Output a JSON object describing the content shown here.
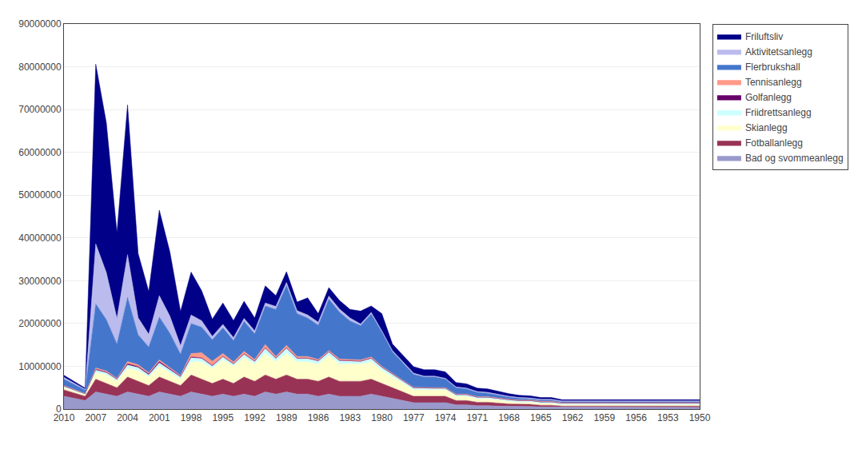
{
  "chart_data": {
    "type": "area",
    "stacked": true,
    "x": [
      2010,
      2009,
      2008,
      2007,
      2006,
      2005,
      2004,
      2003,
      2002,
      2001,
      2000,
      1999,
      1998,
      1997,
      1996,
      1995,
      1994,
      1993,
      1992,
      1991,
      1990,
      1989,
      1988,
      1987,
      1986,
      1985,
      1984,
      1983,
      1982,
      1981,
      1980,
      1979,
      1978,
      1977,
      1976,
      1975,
      1974,
      1973,
      1972,
      1971,
      1970,
      1969,
      1968,
      1967,
      1966,
      1965,
      1964,
      1963,
      1962,
      1961,
      1960,
      1959,
      1958,
      1957,
      1956,
      1955,
      1954,
      1953,
      1952,
      1951,
      1950
    ],
    "series": [
      {
        "name": "Bad og svommeanlegg",
        "color": "#9999CC",
        "values": [
          3000000,
          2500000,
          2000000,
          4000000,
          3500000,
          3000000,
          4000000,
          3500000,
          3000000,
          4000000,
          3500000,
          3000000,
          4000000,
          3500000,
          3000000,
          3500000,
          3000000,
          3500000,
          3000000,
          4000000,
          3500000,
          4000000,
          3500000,
          3500000,
          3000000,
          3500000,
          3000000,
          3000000,
          3000000,
          3500000,
          3000000,
          2500000,
          2000000,
          1500000,
          1500000,
          1500000,
          1500000,
          1000000,
          1000000,
          800000,
          800000,
          700000,
          600000,
          600000,
          600000,
          500000,
          500000,
          400000,
          400000,
          400000,
          400000,
          400000,
          400000,
          400000,
          400000,
          400000,
          400000,
          400000,
          400000,
          400000,
          400000
        ]
      },
      {
        "name": "Fotballanlegg",
        "color": "#993355",
        "values": [
          1500000,
          1200000,
          1000000,
          3000000,
          2500000,
          2000000,
          3500000,
          3000000,
          2500000,
          3500000,
          3000000,
          2500000,
          4000000,
          3500000,
          3000000,
          3500000,
          3000000,
          4000000,
          3500000,
          4000000,
          3500000,
          4000000,
          3500000,
          3500000,
          3500000,
          4000000,
          3500000,
          3500000,
          3500000,
          3500000,
          3000000,
          2500000,
          2000000,
          1500000,
          1500000,
          1500000,
          1500000,
          1000000,
          1000000,
          800000,
          800000,
          700000,
          600000,
          500000,
          500000,
          400000,
          400000,
          300000,
          300000,
          300000,
          300000,
          300000,
          300000,
          300000,
          300000,
          300000,
          300000,
          300000,
          300000,
          300000,
          300000
        ]
      },
      {
        "name": "Skianlegg",
        "color": "#FFFFCC",
        "values": [
          500000,
          400000,
          300000,
          1500000,
          2000000,
          1500000,
          2000000,
          2500000,
          2000000,
          2500000,
          2000000,
          1500000,
          3000000,
          4000000,
          3500000,
          4500000,
          4000000,
          4500000,
          4000000,
          5000000,
          4000000,
          5000000,
          4000000,
          4000000,
          4000000,
          5000000,
          4000000,
          4000000,
          4000000,
          4000000,
          3000000,
          2500000,
          2000000,
          1500000,
          1500000,
          1500000,
          1500000,
          1000000,
          1000000,
          800000,
          800000,
          700000,
          600000,
          500000,
          500000,
          400000,
          400000,
          300000,
          300000,
          300000,
          300000,
          300000,
          300000,
          300000,
          300000,
          300000,
          300000,
          300000,
          300000,
          300000,
          300000
        ]
      },
      {
        "name": "Friidrettsanlegg",
        "color": "#CCFFFF",
        "values": [
          300000,
          250000,
          200000,
          600000,
          500000,
          400000,
          800000,
          700000,
          500000,
          800000,
          700000,
          500000,
          1000000,
          800000,
          600000,
          700000,
          500000,
          800000,
          600000,
          1200000,
          800000,
          1200000,
          800000,
          800000,
          700000,
          800000,
          800000,
          700000,
          600000,
          800000,
          700000,
          600000,
          500000,
          400000,
          300000,
          300000,
          300000,
          300000,
          300000,
          300000,
          300000,
          300000,
          300000,
          300000,
          300000,
          300000,
          300000,
          300000,
          300000,
          300000,
          300000,
          300000,
          300000,
          300000,
          300000,
          300000,
          300000,
          300000,
          300000,
          300000,
          300000
        ]
      },
      {
        "name": "Golfanlegg",
        "color": "#660066",
        "values": [
          100000,
          80000,
          60000,
          200000,
          150000,
          100000,
          300000,
          250000,
          200000,
          300000,
          200000,
          150000,
          200000,
          150000,
          100000,
          100000,
          100000,
          100000,
          100000,
          100000,
          100000,
          100000,
          100000,
          100000,
          100000,
          100000,
          100000,
          100000,
          100000,
          100000,
          100000,
          100000,
          100000,
          100000,
          100000,
          100000,
          100000,
          100000,
          100000,
          100000,
          100000,
          100000,
          100000,
          100000,
          100000,
          100000,
          100000,
          100000,
          100000,
          100000,
          100000,
          100000,
          100000,
          100000,
          100000,
          100000,
          100000,
          100000,
          100000,
          100000,
          100000
        ]
      },
      {
        "name": "Tennisanlegg",
        "color": "#FF9988",
        "values": [
          100000,
          80000,
          60000,
          300000,
          250000,
          200000,
          500000,
          400000,
          300000,
          400000,
          300000,
          200000,
          800000,
          1200000,
          1000000,
          700000,
          400000,
          600000,
          400000,
          800000,
          400000,
          600000,
          400000,
          400000,
          300000,
          300000,
          300000,
          300000,
          300000,
          300000,
          200000,
          200000,
          100000,
          100000,
          100000,
          100000,
          100000,
          100000,
          100000,
          100000,
          100000,
          100000,
          100000,
          100000,
          100000,
          100000,
          100000,
          100000,
          100000,
          100000,
          100000,
          100000,
          100000,
          100000,
          100000,
          100000,
          100000,
          100000,
          100000,
          100000,
          100000
        ]
      },
      {
        "name": "Flerbrukshall",
        "color": "#4477CC",
        "values": [
          1500000,
          1200000,
          800000,
          15000000,
          12000000,
          8000000,
          15000000,
          7000000,
          6000000,
          10000000,
          8000000,
          5000000,
          7000000,
          6000000,
          5000000,
          6000000,
          5000000,
          7000000,
          6000000,
          9000000,
          11000000,
          14000000,
          10000000,
          9000000,
          8000000,
          12000000,
          11000000,
          9000000,
          8000000,
          10000000,
          8000000,
          5000000,
          4000000,
          3000000,
          2500000,
          2500000,
          2000000,
          1500000,
          1200000,
          1000000,
          800000,
          600000,
          500000,
          400000,
          300000,
          300000,
          300000,
          200000,
          200000,
          200000,
          200000,
          200000,
          200000,
          200000,
          200000,
          200000,
          200000,
          200000,
          200000,
          200000,
          200000
        ]
      },
      {
        "name": "Aktivitetsanlegg",
        "color": "#BBBBEE",
        "values": [
          400000,
          300000,
          200000,
          14000000,
          11000000,
          6000000,
          10000000,
          4000000,
          3000000,
          5000000,
          4000000,
          2000000,
          2000000,
          1500000,
          800000,
          800000,
          700000,
          700000,
          700000,
          700000,
          700000,
          700000,
          700000,
          700000,
          700000,
          700000,
          700000,
          700000,
          400000,
          400000,
          300000,
          300000,
          300000,
          300000,
          200000,
          200000,
          200000,
          200000,
          200000,
          200000,
          200000,
          200000,
          200000,
          200000,
          200000,
          200000,
          200000,
          200000,
          200000,
          200000,
          200000,
          200000,
          200000,
          200000,
          200000,
          200000,
          200000,
          200000,
          200000,
          200000,
          200000
        ]
      },
      {
        "name": "Friluftsliv",
        "color": "#000088",
        "values": [
          500000,
          400000,
          300000,
          42000000,
          35000000,
          20000000,
          35000000,
          15000000,
          10000000,
          20000000,
          15000000,
          8000000,
          10000000,
          7000000,
          4000000,
          5000000,
          4000000,
          4000000,
          3000000,
          4000000,
          2500000,
          2500000,
          2000000,
          4000000,
          2000000,
          2000000,
          2000000,
          2000000,
          3000000,
          1500000,
          4000000,
          1500000,
          1500000,
          1500000,
          1500000,
          1500000,
          1500000,
          1000000,
          1000000,
          800000,
          800000,
          700000,
          600000,
          500000,
          500000,
          400000,
          400000,
          300000,
          300000,
          300000,
          300000,
          300000,
          300000,
          300000,
          300000,
          300000,
          300000,
          300000,
          300000,
          300000,
          300000
        ]
      }
    ],
    "xlim": [
      2010,
      1950
    ],
    "xticks": [
      2010,
      2007,
      2004,
      2001,
      1998,
      1995,
      1992,
      1989,
      1986,
      1983,
      1980,
      1977,
      1974,
      1971,
      1968,
      1965,
      1962,
      1959,
      1956,
      1953,
      1950
    ],
    "ylim": [
      0,
      90000000
    ],
    "yticks": [
      0,
      10000000,
      20000000,
      30000000,
      40000000,
      50000000,
      60000000,
      70000000,
      80000000,
      90000000
    ],
    "grid": "y",
    "legend": "right"
  }
}
